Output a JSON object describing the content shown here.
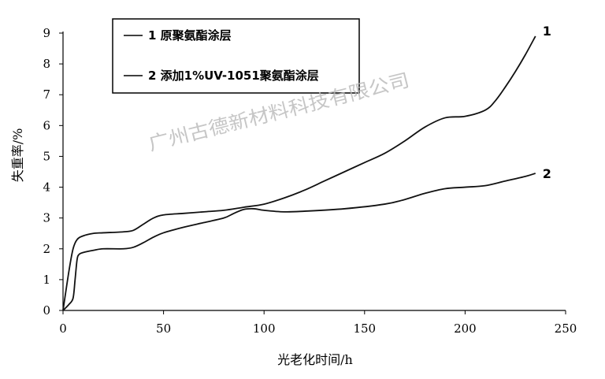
{
  "chart_data": {
    "type": "line",
    "xlabel": "光老化时间/h",
    "ylabel": "失重率/%",
    "xlim": [
      0,
      250
    ],
    "ylim": [
      0,
      9
    ],
    "xticks": [
      "0",
      "50",
      "100",
      "150",
      "200",
      "250"
    ],
    "yticks": [
      "0",
      "1",
      "2",
      "3",
      "4",
      "5",
      "6",
      "7",
      "8",
      "9"
    ],
    "grid": false,
    "legend_position": "top-left",
    "legend": [
      "1 原聚氨酯涂层",
      "2 添加1%UV-1051聚氨酯涂层"
    ],
    "series": [
      {
        "name": "1 原聚氨酯涂层",
        "label": "1",
        "x": [
          0,
          3,
          5,
          7,
          10,
          15,
          20,
          30,
          35,
          40,
          45,
          50,
          60,
          70,
          80,
          90,
          100,
          110,
          120,
          130,
          140,
          150,
          160,
          170,
          180,
          190,
          200,
          210,
          215,
          220,
          225,
          230,
          235
        ],
        "y": [
          0,
          1.3,
          2.0,
          2.3,
          2.42,
          2.5,
          2.52,
          2.55,
          2.6,
          2.8,
          3.0,
          3.1,
          3.15,
          3.2,
          3.25,
          3.35,
          3.45,
          3.65,
          3.9,
          4.2,
          4.5,
          4.8,
          5.1,
          5.5,
          5.95,
          6.25,
          6.3,
          6.5,
          6.8,
          7.25,
          7.75,
          8.3,
          8.9
        ]
      },
      {
        "name": "2 添加1%UV-1051聚氨酯涂层",
        "label": "2",
        "x": [
          0,
          3,
          5,
          6,
          7,
          8,
          10,
          15,
          20,
          30,
          35,
          40,
          45,
          50,
          60,
          70,
          80,
          85,
          90,
          95,
          100,
          110,
          120,
          140,
          160,
          170,
          180,
          190,
          200,
          210,
          220,
          230,
          235
        ],
        "y": [
          0,
          0.2,
          0.4,
          1.0,
          1.65,
          1.82,
          1.88,
          1.95,
          2.0,
          2.0,
          2.05,
          2.2,
          2.38,
          2.52,
          2.7,
          2.85,
          3.0,
          3.15,
          3.28,
          3.3,
          3.25,
          3.2,
          3.22,
          3.3,
          3.45,
          3.6,
          3.8,
          3.95,
          4.0,
          4.05,
          4.2,
          4.35,
          4.45
        ]
      }
    ]
  },
  "watermark": "广州古德新材料科技有限公司"
}
